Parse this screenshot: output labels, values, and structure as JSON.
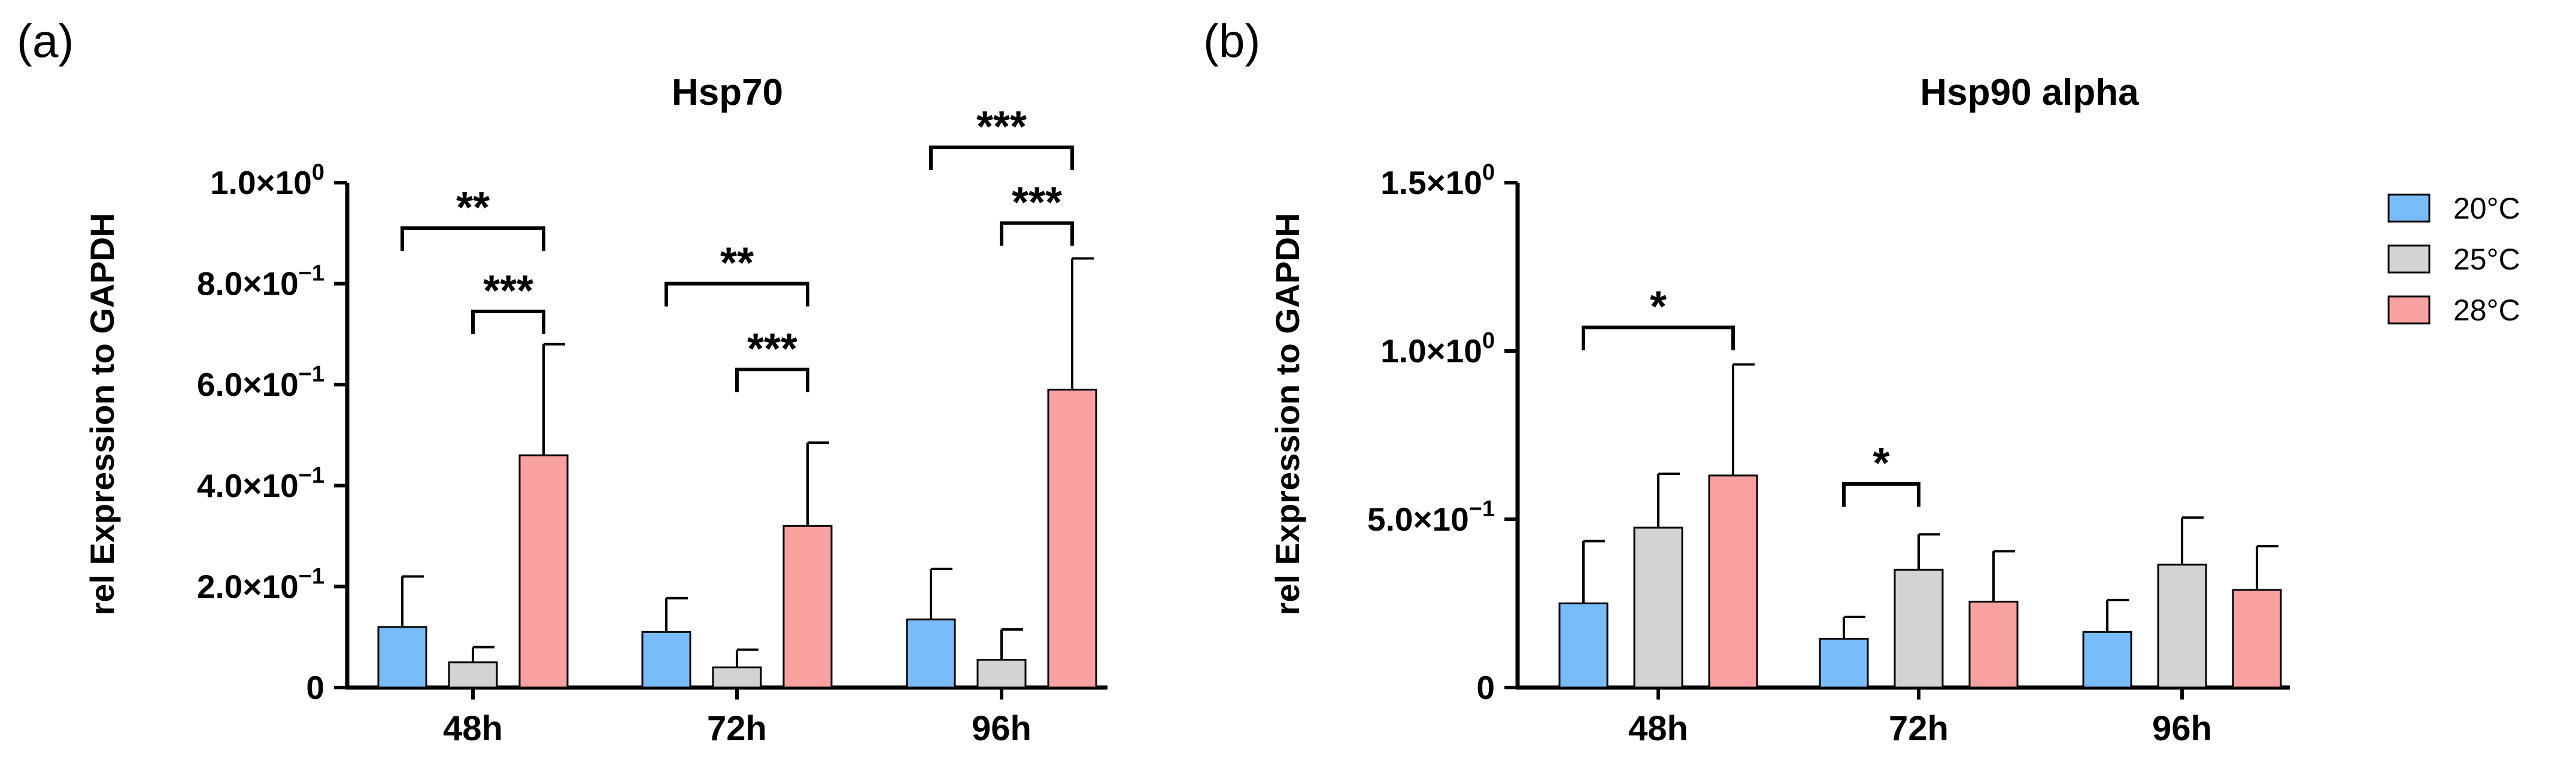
{
  "panel_labels": [
    "(a)",
    "(b)"
  ],
  "legend": [
    {
      "label": "20°C",
      "color": "#79BCFA"
    },
    {
      "label": "25°C",
      "color": "#D3D3D3"
    },
    {
      "label": "28°C",
      "color": "#F9A1A1"
    }
  ],
  "chart_data": [
    {
      "type": "bar",
      "title": "Hsp70",
      "xlabel": "",
      "ylabel": "rel Expression to GAPDH",
      "ylim": [
        0,
        1.0
      ],
      "yticks": [
        0,
        0.2,
        0.4,
        0.6,
        0.8,
        1.0
      ],
      "ytick_labels": [
        {
          "label": "0"
        },
        {
          "mant": "2.0×10",
          "exp": "−1"
        },
        {
          "mant": "4.0×10",
          "exp": "−1"
        },
        {
          "mant": "6.0×10",
          "exp": "−1"
        },
        {
          "mant": "8.0×10",
          "exp": "−1"
        },
        {
          "mant": "1.0×10",
          "exp": "0"
        }
      ],
      "categories": [
        "48h",
        "72h",
        "96h"
      ],
      "series": [
        {
          "name": "20°C",
          "values": [
            0.12,
            0.11,
            0.135
          ],
          "errors": [
            0.1,
            0.067,
            0.1
          ]
        },
        {
          "name": "25°C",
          "values": [
            0.05,
            0.04,
            0.055
          ],
          "errors": [
            0.03,
            0.035,
            0.06
          ]
        },
        {
          "name": "28°C",
          "values": [
            0.46,
            0.32,
            0.59
          ],
          "errors": [
            0.22,
            0.165,
            0.26
          ]
        }
      ],
      "significance": [
        {
          "category": 0,
          "from": 0,
          "to": 2,
          "y": 0.91,
          "label": "**"
        },
        {
          "category": 0,
          "from": 1,
          "to": 2,
          "y": 0.745,
          "label": "***"
        },
        {
          "category": 1,
          "from": 0,
          "to": 2,
          "y": 0.8,
          "label": "**"
        },
        {
          "category": 1,
          "from": 1,
          "to": 2,
          "y": 0.63,
          "label": "***"
        },
        {
          "category": 2,
          "from": 0,
          "to": 2,
          "y": 1.07,
          "label": "***"
        },
        {
          "category": 2,
          "from": 1,
          "to": 2,
          "y": 0.92,
          "label": "***"
        }
      ]
    },
    {
      "type": "bar",
      "title": "Hsp90 alpha",
      "xlabel": "",
      "ylabel": "rel Expression to GAPDH",
      "ylim": [
        0,
        1.5
      ],
      "yticks": [
        0,
        0.5,
        1.0,
        1.5
      ],
      "ytick_labels": [
        {
          "label": "0"
        },
        {
          "mant": "5.0×10",
          "exp": "−1"
        },
        {
          "mant": "1.0×10",
          "exp": "0"
        },
        {
          "mant": "1.5×10",
          "exp": "0"
        }
      ],
      "categories": [
        "48h",
        "72h",
        "96h"
      ],
      "series": [
        {
          "name": "20°C",
          "values": [
            0.25,
            0.145,
            0.165
          ],
          "errors": [
            0.185,
            0.065,
            0.095
          ]
        },
        {
          "name": "25°C",
          "values": [
            0.475,
            0.35,
            0.365
          ],
          "errors": [
            0.16,
            0.105,
            0.14
          ]
        },
        {
          "name": "28°C",
          "values": [
            0.63,
            0.255,
            0.29
          ],
          "errors": [
            0.33,
            0.15,
            0.13
          ]
        }
      ],
      "significance": [
        {
          "category": 0,
          "from": 0,
          "to": 2,
          "y": 1.07,
          "label": "*"
        },
        {
          "category": 1,
          "from": 0,
          "to": 1,
          "y": 0.605,
          "label": "*"
        }
      ]
    }
  ]
}
